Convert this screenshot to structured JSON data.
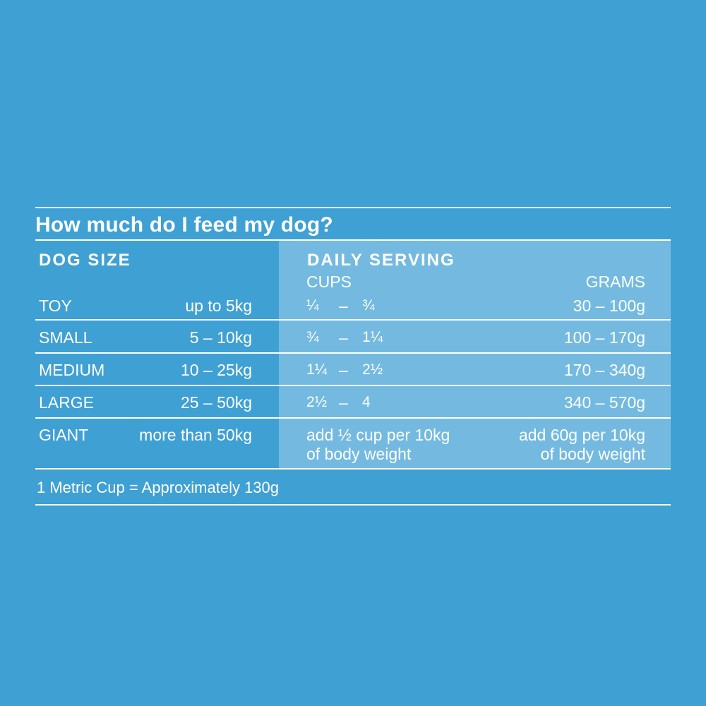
{
  "title": "How much do I feed my dog?",
  "headers": {
    "dog_size": "DOG SIZE",
    "daily_serving": "DAILY SERVING",
    "cups": "CUPS",
    "grams": "GRAMS"
  },
  "rows": [
    {
      "size": "TOY",
      "weight": "up to 5kg",
      "cups_from": "¼",
      "cups_dash": "–",
      "cups_to": "¾",
      "grams": "30  –  100g"
    },
    {
      "size": "SMALL",
      "weight": "5  –  10kg",
      "cups_from": "¾",
      "cups_dash": "–",
      "cups_to": "1¼",
      "grams": "100  –  170g"
    },
    {
      "size": "MEDIUM",
      "weight": "10  –  25kg",
      "cups_from": "1¼",
      "cups_dash": "–",
      "cups_to": "2½",
      "grams": "170  –  340g"
    },
    {
      "size": "LARGE",
      "weight": "25  –  50kg",
      "cups_from": "2½",
      "cups_dash": "–",
      "cups_to": "4",
      "grams": "340  –  570g"
    }
  ],
  "giant": {
    "size": "GIANT",
    "weight": "more than 50kg",
    "cups_line1": "add ½ cup per 10kg",
    "cups_line2": "of body weight",
    "grams_line1": "add 60g per 10kg",
    "grams_line2": "of body weight"
  },
  "footnote": "1 Metric Cup = Approximately 130g",
  "colors": {
    "background": "#3fa0d4",
    "panel": "#78b8e0",
    "text": "#ffffff"
  }
}
